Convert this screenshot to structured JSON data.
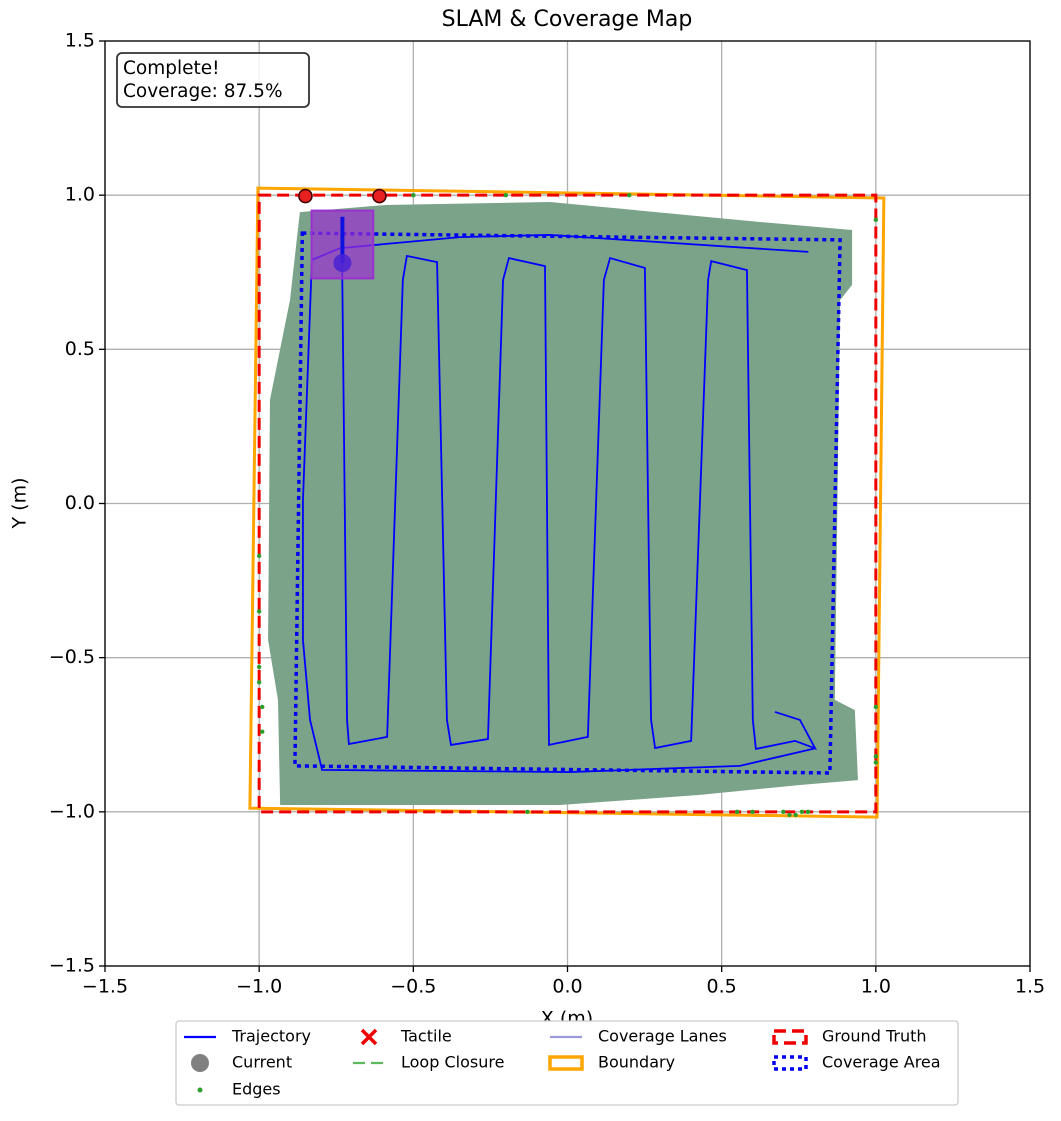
{
  "chart_data": {
    "type": "line",
    "title": "SLAM & Coverage Map",
    "xlabel": "X (m)",
    "ylabel": "Y (m)",
    "annotation_lines": [
      "Complete!",
      "Coverage: 87.5%"
    ],
    "xlim": [
      -1.5,
      1.5
    ],
    "ylim": [
      -1.5,
      1.5
    ],
    "xticks": [
      {
        "value": -1.5,
        "label": "−1.5"
      },
      {
        "value": -1.0,
        "label": "−1.0"
      },
      {
        "value": -0.5,
        "label": "−0.5"
      },
      {
        "value": 0.0,
        "label": "0.0"
      },
      0.5,
      {
        "value": 1.0,
        "label": "1.0"
      },
      1.5
    ],
    "yticks": [
      {
        "value": -1.5,
        "label": "−1.5"
      },
      {
        "value": -1.0,
        "label": "−1.0"
      },
      {
        "value": -0.5,
        "label": "−0.5"
      },
      {
        "value": 0.0,
        "label": "0.0"
      },
      0.5,
      {
        "value": 1.0,
        "label": "1.0"
      },
      1.5
    ],
    "grid": true,
    "legend_loc": "lower center",
    "legend_columns": 4,
    "coverage_map": {
      "color": "#7ba38a",
      "x": [
        -0.868,
        -0.592,
        -0.057,
        0.624,
        0.923,
        0.923,
        0.884,
        0.867,
        0.932,
        0.942,
        0.754,
        0.43,
        -0.024,
        -0.932,
        -0.939,
        -0.971,
        -0.965,
        -0.9
      ],
      "y": [
        0.945,
        0.968,
        0.978,
        0.913,
        0.887,
        0.709,
        0.66,
        -0.637,
        -0.67,
        -0.897,
        -0.913,
        -0.945,
        -0.978,
        -0.978,
        -0.637,
        -0.443,
        0.336,
        0.66
      ]
    },
    "sensor_box": {
      "color": "#9b30d0",
      "x": [
        -0.83,
        -0.63
      ],
      "y": [
        0.73,
        0.95
      ]
    },
    "heading": {
      "color": "#1010e0",
      "x": [
        -0.73,
        -0.73
      ],
      "y": [
        0.78,
        0.93
      ]
    },
    "contacts": {
      "color": "#e82020",
      "x": [
        -0.85,
        -0.61
      ],
      "y": [
        0.997,
        0.997
      ]
    },
    "series": [
      {
        "name": "Trajectory",
        "kind": "line",
        "color": "#0000ff",
        "x": [
          -0.731,
          -0.715,
          -0.709,
          -0.585,
          -0.534,
          -0.521,
          -0.423,
          -0.391,
          -0.378,
          -0.258,
          -0.209,
          -0.19,
          -0.073,
          -0.06,
          0.066,
          0.118,
          0.138,
          0.251,
          0.271,
          0.284,
          0.401,
          0.456,
          0.466,
          0.582,
          0.601,
          0.611,
          0.738,
          0.803,
          0.754,
          0.673,
          null,
          0.803,
          0.559,
          0.008,
          -0.796,
          -0.835,
          -0.858,
          -0.858,
          -0.829,
          -0.738,
          -0.349,
          -0.057,
          0.781
        ],
        "y": [
          0.79,
          -0.702,
          -0.78,
          -0.757,
          0.725,
          0.803,
          0.783,
          -0.702,
          -0.783,
          -0.764,
          0.725,
          0.796,
          0.77,
          -0.783,
          -0.757,
          0.725,
          0.796,
          0.764,
          -0.702,
          -0.793,
          -0.77,
          0.725,
          0.786,
          0.757,
          -0.702,
          -0.796,
          -0.77,
          -0.794,
          -0.702,
          -0.676,
          null,
          -0.794,
          -0.851,
          -0.871,
          -0.864,
          -0.702,
          -0.443,
          0.01,
          0.79,
          0.828,
          0.864,
          0.871,
          0.816
        ]
      },
      {
        "name": "Current",
        "kind": "point",
        "color": "#808080",
        "draw_color": "#4a22d4",
        "x": [
          -0.73
        ],
        "y": [
          0.78
        ]
      },
      {
        "name": "Edges",
        "kind": "scatter",
        "color": "#2ca02c",
        "x": [
          -1.0,
          -1.0,
          -1.0,
          -1.0,
          -0.99,
          -0.99,
          1.0,
          1.0,
          1.0,
          1.0,
          0.7,
          0.72,
          0.74,
          0.76,
          0.78,
          -0.5,
          -0.2,
          0.2,
          -0.13,
          0.55,
          0.6
        ],
        "y": [
          -0.17,
          -0.35,
          -0.53,
          -0.58,
          -0.66,
          -0.74,
          0.92,
          -0.66,
          -0.82,
          -0.84,
          -1.0,
          -1.01,
          -1.01,
          -1.0,
          -1.0,
          1.0,
          1.0,
          1.0,
          -1.0,
          -1.0,
          -1.0
        ]
      },
      {
        "name": "Tactile",
        "kind": "cross",
        "color": "#ee0000",
        "x": [],
        "y": []
      },
      {
        "name": "Loop Closure",
        "kind": "line",
        "dash": "dashed",
        "color": "#5cb85c",
        "x": [],
        "y": []
      },
      {
        "name": "Coverage Lanes",
        "kind": "line",
        "color": "#9a9ad6",
        "x": [],
        "y": []
      },
      {
        "name": "Boundary",
        "kind": "polygon",
        "color": "#ffa500",
        "x": [
          -1.004,
          1.026,
          1.004,
          -1.03
        ],
        "y": [
          1.023,
          0.991,
          -1.017,
          -0.988
        ]
      },
      {
        "name": "Ground Truth",
        "kind": "polygon",
        "dash": "dashed",
        "color": "#ee0000",
        "x": [
          -1.0,
          1.0,
          1.0,
          -1.0
        ],
        "y": [
          1.0,
          1.0,
          -1.0,
          -1.0
        ]
      },
      {
        "name": "Coverage Area",
        "kind": "polygon",
        "dash": "dotted",
        "color": "#0000ee",
        "x": [
          -0.86,
          0.884,
          0.851,
          -0.884
        ],
        "y": [
          0.877,
          0.855,
          -0.874,
          -0.851
        ]
      }
    ]
  }
}
